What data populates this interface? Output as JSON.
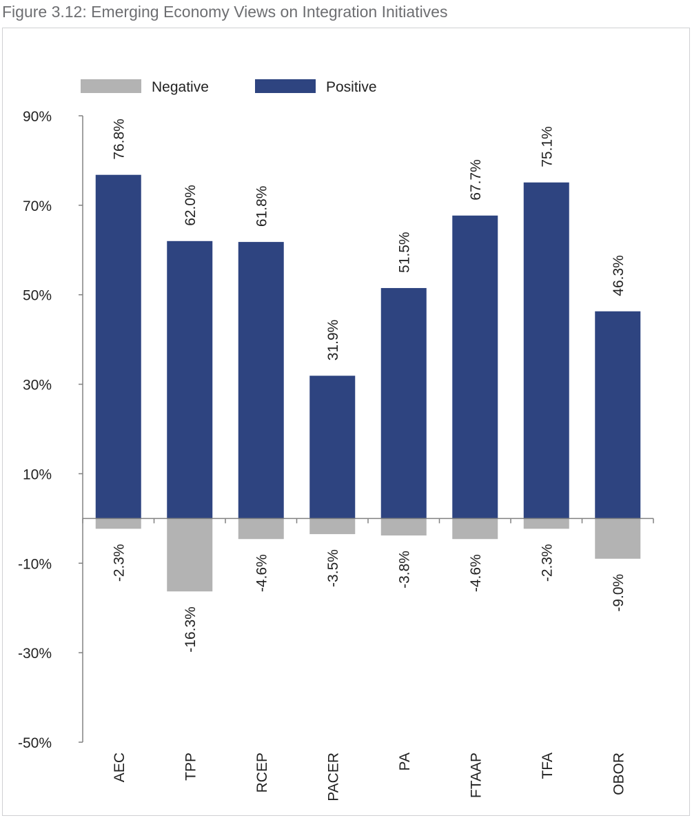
{
  "figure_title": "Figure 3.12: Emerging Economy Views on Integration Initiatives",
  "colors": {
    "positive": "#2e4480",
    "negative": "#b3b3b3",
    "axis": "#808080"
  },
  "chart_data": {
    "type": "bar",
    "title": "Figure 3.12: Emerging Economy Views on Integration Initiatives",
    "xlabel": "",
    "ylabel": "",
    "ylim": [
      -50,
      90
    ],
    "yticks": [
      90,
      70,
      50,
      30,
      10,
      -10,
      -30,
      -50
    ],
    "ytick_labels": [
      "90%",
      "70%",
      "50%",
      "30%",
      "10%",
      "-10%",
      "-30%",
      "-50%"
    ],
    "legend_position": "top-left",
    "categories": [
      "AEC",
      "TPP",
      "RCEP",
      "PACER",
      "PA",
      "FTAAP",
      "TFA",
      "OBOR"
    ],
    "series": [
      {
        "name": "Negative",
        "values": [
          -2.3,
          -16.3,
          -4.6,
          -3.5,
          -3.8,
          -4.6,
          -2.3,
          -9.0
        ],
        "labels": [
          "-2.3%",
          "-16.3%",
          "-4.6%",
          "-3.5%",
          "-3.8%",
          "-4.6%",
          "-2.3%",
          "-9.0%"
        ]
      },
      {
        "name": "Positive",
        "values": [
          76.8,
          62.0,
          61.8,
          31.9,
          51.5,
          67.7,
          75.1,
          46.3
        ],
        "labels": [
          "76.8%",
          "62.0%",
          "61.8%",
          "31.9%",
          "51.5%",
          "67.7%",
          "75.1%",
          "46.3%"
        ]
      }
    ]
  }
}
